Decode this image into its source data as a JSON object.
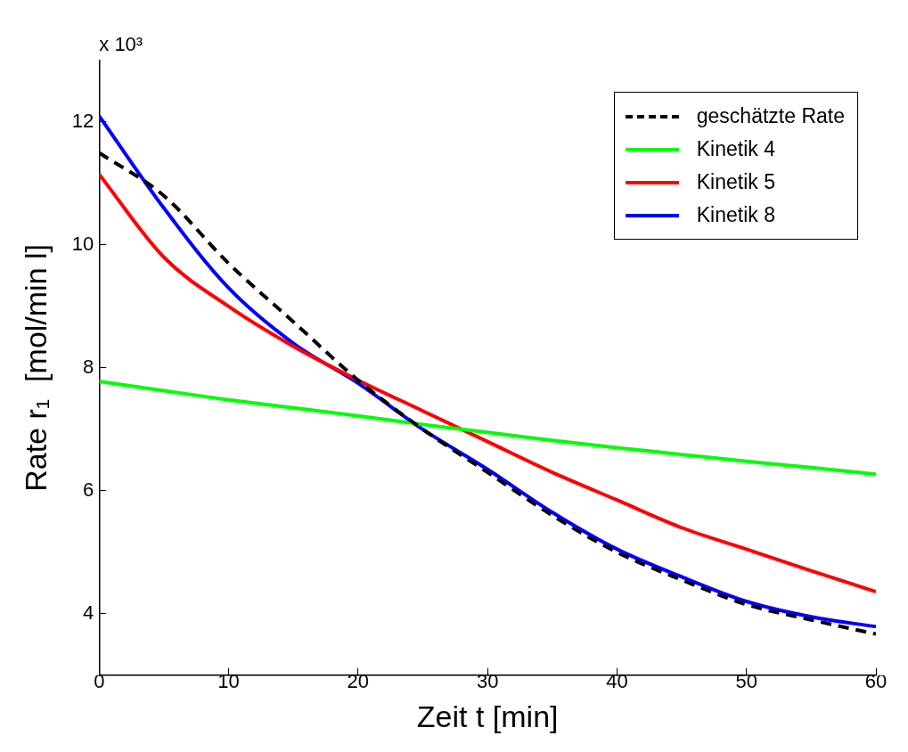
{
  "chart_data": {
    "type": "line",
    "xlabel": "Zeit t [min]",
    "ylabel": "Rate r₁  [mol/min l]",
    "annotations": [
      "x 10³"
    ],
    "x": [
      0,
      5,
      10,
      15,
      20,
      25,
      30,
      35,
      40,
      45,
      50,
      55,
      60
    ],
    "xlim": [
      0,
      60
    ],
    "xticks": [
      0,
      10,
      20,
      30,
      40,
      50,
      60
    ],
    "ylim": [
      3,
      13
    ],
    "yticks": [
      4,
      6,
      8,
      10,
      12
    ],
    "grid": false,
    "legend": "top right",
    "marker": "none",
    "series": [
      {
        "name": "geschätzte Rate",
        "color": "#000000",
        "line_style": "dashed",
        "values": [
          11.5,
          10.8,
          9.7,
          8.75,
          7.8,
          7.0,
          6.3,
          5.6,
          5.0,
          4.55,
          4.15,
          3.9,
          3.67
        ]
      },
      {
        "name": "Kinetik 4",
        "color": "#00ff00",
        "line_style": "solid",
        "values": [
          7.78,
          7.63,
          7.48,
          7.35,
          7.22,
          7.08,
          6.95,
          6.82,
          6.7,
          6.59,
          6.48,
          6.38,
          6.27
        ]
      },
      {
        "name": "Kinetik 5",
        "color": "#ff0000",
        "line_style": "solid",
        "values": [
          11.15,
          9.8,
          9.0,
          8.35,
          7.8,
          7.3,
          6.8,
          6.3,
          5.85,
          5.4,
          5.05,
          4.7,
          4.36
        ]
      },
      {
        "name": "Kinetik 8",
        "color": "#0000ff",
        "line_style": "solid",
        "values": [
          12.1,
          10.6,
          9.3,
          8.4,
          7.75,
          7.0,
          6.35,
          5.65,
          5.05,
          4.6,
          4.2,
          3.95,
          3.79
        ]
      }
    ]
  }
}
